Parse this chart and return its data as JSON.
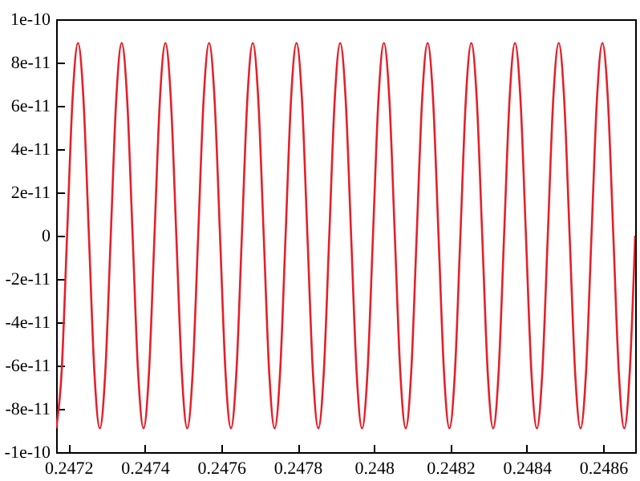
{
  "chart_data": {
    "type": "line",
    "x": [
      0.247168,
      0.2471823,
      0.2471966,
      0.2472109,
      0.2472252,
      0.2472395,
      0.2472538,
      0.2472681,
      0.2472824,
      0.2472967,
      0.247311,
      0.2473253,
      0.2473396,
      0.2473539,
      0.2473682,
      0.2473825,
      0.2473968,
      0.2474111,
      0.2474254,
      0.2474397,
      0.247454,
      0.2474683,
      0.2474826,
      0.2474969,
      0.2475112,
      0.2475255,
      0.2475398,
      0.2475541,
      0.2475684,
      0.2475827,
      0.247597,
      0.2476113,
      0.2476256,
      0.2476399,
      0.2476542,
      0.2476685,
      0.2476828,
      0.2476971,
      0.2477114,
      0.2477257,
      0.24774,
      0.2477543,
      0.2477686,
      0.2477829,
      0.2477972,
      0.2478115,
      0.2478258,
      0.2478401,
      0.2478544,
      0.2478687,
      0.247883,
      0.2478973,
      0.2479116,
      0.2479259,
      0.2479402,
      0.2479545,
      0.2479688,
      0.2479831,
      0.2479974,
      0.2480117,
      0.248026,
      0.2480403,
      0.2480546,
      0.2480689,
      0.2480832,
      0.2480975,
      0.2481118,
      0.2481261,
      0.2481404,
      0.2481547,
      0.248169,
      0.2481833,
      0.2481976,
      0.2482119,
      0.2482262,
      0.2482405,
      0.2482548,
      0.2482691,
      0.2482834,
      0.2482977,
      0.248312,
      0.2483263,
      0.2483406,
      0.2483549,
      0.2483692,
      0.2483835,
      0.2483978,
      0.2484121,
      0.2484264,
      0.2484407,
      0.248455,
      0.2484693,
      0.2484836,
      0.2484979,
      0.2485122,
      0.2485265,
      0.2485408,
      0.2485551,
      0.2485694,
      0.2485837,
      0.248598,
      0.2486123,
      0.2486266,
      0.2486409,
      0.2486552,
      0.2486695,
      0.2486838
    ],
    "series": [
      {
        "color": "#e3202a",
        "values": [
          -8.9e-11,
          -6.3e-11,
          0,
          6.3e-11,
          8.9e-11,
          6.3e-11,
          0,
          -6.3e-11,
          -8.9e-11,
          -6.3e-11,
          0,
          6.3e-11,
          8.9e-11,
          6.3e-11,
          0,
          -6.3e-11,
          -8.9e-11,
          -6.3e-11,
          0,
          6.3e-11,
          8.9e-11,
          6.3e-11,
          0,
          -6.3e-11,
          -8.9e-11,
          -6.3e-11,
          0,
          6.3e-11,
          8.9e-11,
          6.3e-11,
          0,
          -6.3e-11,
          -8.9e-11,
          -6.3e-11,
          0,
          6.3e-11,
          8.9e-11,
          6.3e-11,
          0,
          -6.3e-11,
          -8.9e-11,
          -6.3e-11,
          0,
          6.3e-11,
          8.9e-11,
          6.3e-11,
          0,
          -6.3e-11,
          -8.9e-11,
          -6.3e-11,
          0,
          6.3e-11,
          8.9e-11,
          6.3e-11,
          0,
          -6.3e-11,
          -8.9e-11,
          -6.3e-11,
          0,
          6.3e-11,
          8.9e-11,
          6.3e-11,
          0,
          -6.3e-11,
          -8.9e-11,
          -6.3e-11,
          0,
          6.3e-11,
          8.9e-11,
          6.3e-11,
          0,
          -6.3e-11,
          -8.9e-11,
          -6.3e-11,
          0,
          6.3e-11,
          8.9e-11,
          6.3e-11,
          0,
          -6.3e-11,
          -8.9e-11,
          -6.3e-11,
          0,
          6.3e-11,
          8.9e-11,
          6.3e-11,
          0,
          -6.3e-11,
          -8.9e-11,
          -6.3e-11,
          0,
          6.3e-11,
          8.9e-11,
          6.3e-11,
          0,
          -6.3e-11,
          -8.9e-11,
          -6.3e-11,
          0,
          6.3e-11,
          8.9e-11,
          6.3e-11,
          0,
          -6.3e-11,
          -8.9e-11,
          -6.3e-11,
          0
        ]
      }
    ],
    "xlim": [
      0.247168,
      0.2486838
    ],
    "xticks": [
      0.2472,
      0.2474,
      0.2476,
      0.2478,
      0.248,
      0.2482,
      0.2484,
      0.2486
    ],
    "ylim": [
      -1e-10,
      1e-10
    ],
    "yticks": [
      {
        "value": -1e-10,
        "label": "-1e-10"
      },
      {
        "value": -8e-11,
        "label": "-8e-11"
      },
      {
        "value": -6e-11,
        "label": "-6e-11"
      },
      {
        "value": -4e-11,
        "label": "-4e-11"
      },
      {
        "value": -2e-11,
        "label": "-2e-11"
      },
      {
        "value": 0,
        "label": "0"
      },
      {
        "value": 2e-11,
        "label": "2e-11"
      },
      {
        "value": 4e-11,
        "label": "4e-11"
      },
      {
        "value": 6e-11,
        "label": "6e-11"
      },
      {
        "value": 8e-11,
        "label": "8e-11"
      },
      {
        "value": 1e-10,
        "label": "1e-10"
      }
    ],
    "line_style": "solid"
  }
}
